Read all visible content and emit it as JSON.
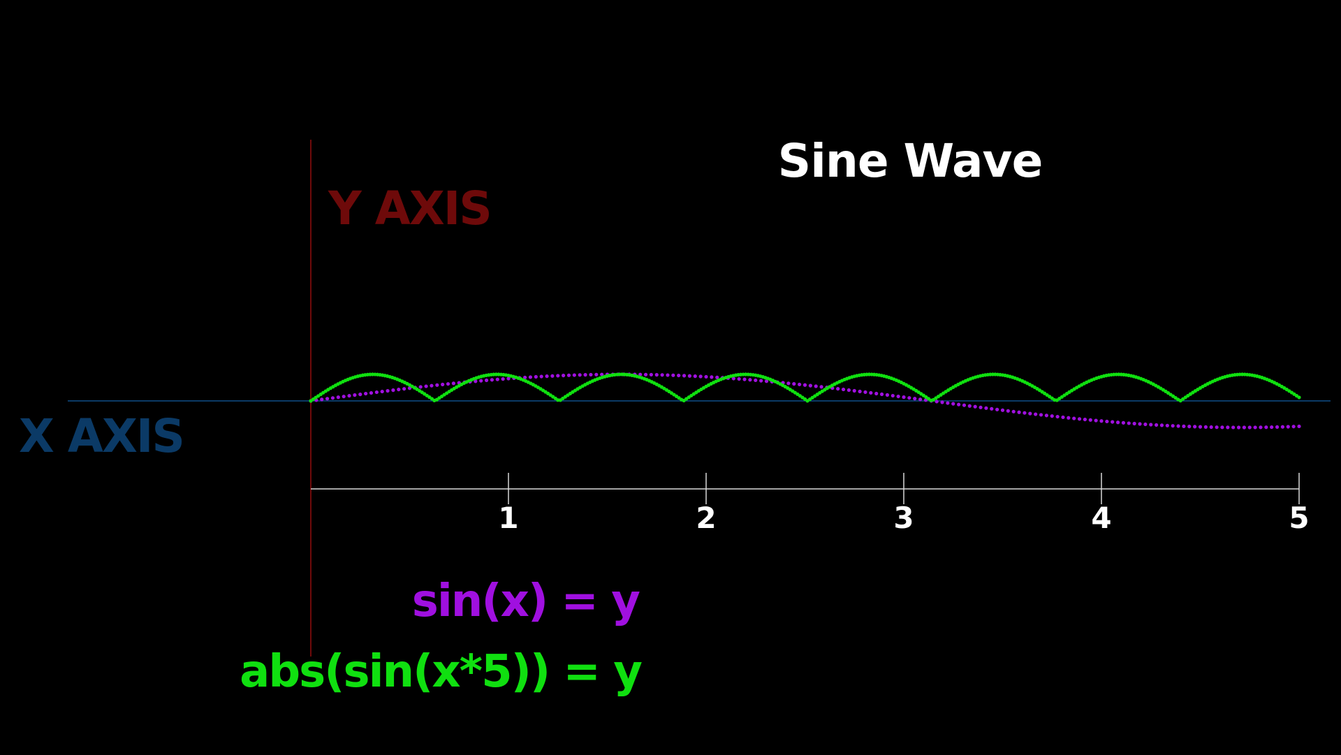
{
  "chart_data": {
    "type": "line",
    "title": "Sine Wave",
    "xlabel": "X AXIS",
    "ylabel": "Y AXIS",
    "xlim": [
      0,
      5
    ],
    "ylim": [
      -1,
      1
    ],
    "x_ticks": [
      "1",
      "2",
      "3",
      "4",
      "5"
    ],
    "grid": false,
    "background": "#000000",
    "colors": {
      "title": "#ffffff",
      "x_axis": "#0b3a66",
      "y_axis": "#6e0a0a",
      "ticks": "#d9d9d9"
    },
    "series": [
      {
        "name": "sin(x) = y",
        "expression": "sin(x)",
        "color": "#a010e0",
        "marker": "dot",
        "samples": 180
      },
      {
        "name": "abs(sin(x*5)) = y",
        "expression": "abs(sin(x*5))",
        "color": "#10e010",
        "marker": "dot",
        "samples": 400
      }
    ]
  }
}
